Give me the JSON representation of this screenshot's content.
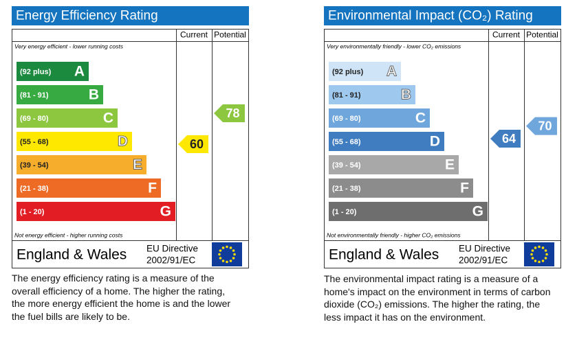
{
  "panels": [
    {
      "title": "Energy Efficiency Rating",
      "columns": [
        "Current",
        "Potential"
      ],
      "top_note": "Very energy efficient - lower running costs",
      "bottom_note": "Not energy efficient - higher running costs",
      "bands": [
        {
          "range": "(92 plus)",
          "letter": "A",
          "color": "#1b8a3e"
        },
        {
          "range": "(81 - 91)",
          "letter": "B",
          "color": "#37aa42"
        },
        {
          "range": "(69 - 80)",
          "letter": "C",
          "color": "#8dc63f"
        },
        {
          "range": "(55 - 68)",
          "letter": "D",
          "color": "#ffe800"
        },
        {
          "range": "(39 - 54)",
          "letter": "E",
          "color": "#f6ad2b"
        },
        {
          "range": "(21 - 38)",
          "letter": "F",
          "color": "#ed6b25"
        },
        {
          "range": "(1 - 20)",
          "letter": "G",
          "color": "#e31d24"
        }
      ],
      "current": 60,
      "potential": 78,
      "footer": {
        "region": "England & Wales",
        "directive": "EU Directive",
        "directive_code": "2002/91/EC"
      },
      "description": [
        "The energy efficiency rating is a measure of the",
        "overall efficiency of a home. The higher the rating,",
        "the more energy efficient the home is and the lower",
        "the fuel bills are likely to be."
      ]
    },
    {
      "title": "Environmental Impact (CO₂) Rating",
      "columns": [
        "Current",
        "Potential"
      ],
      "top_note": "Very environmentally friendly - lower CO₂ emissions",
      "bottom_note": "Not environmentally friendly - higher CO₂ emissions",
      "bands": [
        {
          "range": "(92 plus)",
          "letter": "A",
          "color": "#cfe4f6"
        },
        {
          "range": "(81 - 91)",
          "letter": "B",
          "color": "#9fc8ee"
        },
        {
          "range": "(69 - 80)",
          "letter": "C",
          "color": "#6fa6dc"
        },
        {
          "range": "(55 - 68)",
          "letter": "D",
          "color": "#3f7cc0"
        },
        {
          "range": "(39 - 54)",
          "letter": "E",
          "color": "#a8a8a8"
        },
        {
          "range": "(21 - 38)",
          "letter": "F",
          "color": "#8c8c8c"
        },
        {
          "range": "(1 - 20)",
          "letter": "G",
          "color": "#6e6e6e"
        }
      ],
      "current": 64,
      "potential": 70,
      "footer": {
        "region": "England & Wales",
        "directive": "EU Directive",
        "directive_code": "2002/91/EC"
      },
      "description": [
        "The environmental impact rating is a measure of a",
        "home's impact on the environment in terms of carbon",
        "dioxide (CO₂) emissions. The higher the rating, the",
        "less impact it has on the environment."
      ]
    }
  ]
}
